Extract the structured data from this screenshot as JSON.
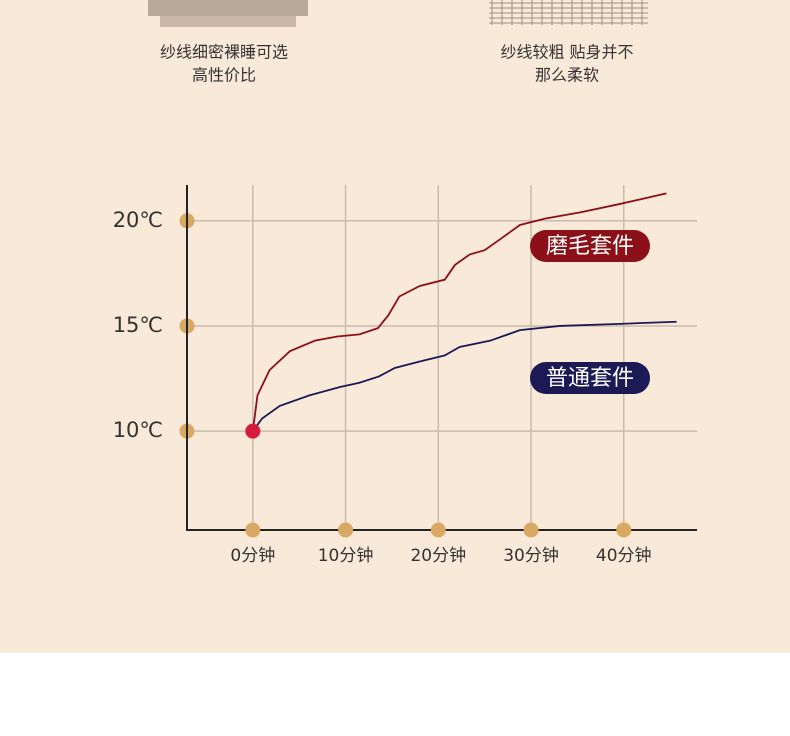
{
  "captions": [
    [
      "纱线细密裸睡可选",
      "高性价比"
    ],
    [
      "纱线较粗 贴身并不",
      "那么柔软"
    ]
  ],
  "chart_data": {
    "type": "line",
    "xlim": [
      -7.1,
      47.9
    ],
    "ylim": [
      5.3,
      21.7
    ],
    "xticks": [
      {
        "value": 0,
        "label": "0分钟"
      },
      {
        "value": 10,
        "label": "10分钟"
      },
      {
        "value": 20,
        "label": "20分钟"
      },
      {
        "value": 30,
        "label": "30分钟"
      },
      {
        "value": 40,
        "label": "40分钟"
      }
    ],
    "yticks": [
      {
        "value": 10,
        "label": "10℃"
      },
      {
        "value": 15,
        "label": "15℃"
      },
      {
        "value": 20,
        "label": "20℃"
      }
    ],
    "grid": true,
    "series": [
      {
        "name": "磨毛套件",
        "color": "#8b1017",
        "x": [
          0,
          0.5,
          1.8,
          4,
          6.7,
          9.1,
          11.5,
          13.5,
          14.6,
          15.8,
          18,
          20.7,
          21.8,
          23.4,
          25,
          26.6,
          28.8,
          31.5,
          35.3,
          39.6,
          44.6
        ],
        "values": [
          10,
          11.7,
          12.9,
          13.8,
          14.3,
          14.5,
          14.6,
          14.9,
          15.5,
          16.4,
          16.9,
          17.2,
          17.9,
          18.4,
          18.6,
          19.1,
          19.8,
          20.1,
          20.4,
          20.8,
          21.3
        ]
      },
      {
        "name": "普通套件",
        "color": "#1c1a55",
        "x": [
          0,
          1,
          2.9,
          6.1,
          9.4,
          11.5,
          13.6,
          15.3,
          17.9,
          20.7,
          22.3,
          25.6,
          28.8,
          33.1,
          39.6,
          45.7
        ],
        "values": [
          10,
          10.6,
          11.2,
          11.7,
          12.1,
          12.3,
          12.6,
          13.0,
          13.3,
          13.6,
          14.0,
          14.3,
          14.8,
          15.0,
          15.1,
          15.2
        ]
      }
    ]
  }
}
